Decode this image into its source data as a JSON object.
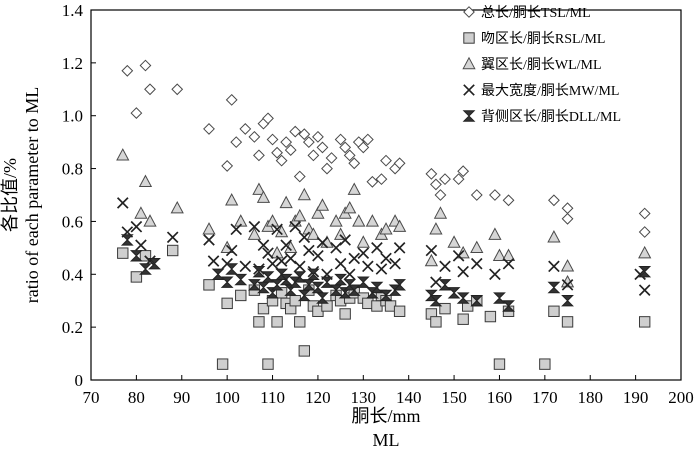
{
  "chart_data": {
    "type": "scatter",
    "title": "",
    "xlabel": "胴长/mm",
    "xlabel2": "ML",
    "ylabel": "各比值/%",
    "ylabel2": "ratio of each parameter to ML",
    "xlim": [
      70,
      200
    ],
    "ylim": [
      0,
      1.4
    ],
    "xticks": [
      "70",
      "80",
      "90",
      "100",
      "110",
      "120",
      "130",
      "140",
      "150",
      "160",
      "170",
      "180",
      "190",
      "200"
    ],
    "yticks": [
      "0",
      "0.2",
      "0.4",
      "0.6",
      "0.8",
      "1.0",
      "1.2",
      "1.4"
    ],
    "grid": false,
    "legend_position": "top-right",
    "series": [
      {
        "name": "总长/胴长TSL/ML",
        "marker": "diamond",
        "points": [
          [
            78,
            1.17
          ],
          [
            80,
            1.01
          ],
          [
            82,
            1.19
          ],
          [
            83,
            1.1
          ],
          [
            89,
            1.1
          ],
          [
            96,
            0.95
          ],
          [
            100,
            0.81
          ],
          [
            101,
            1.06
          ],
          [
            102,
            0.9
          ],
          [
            104,
            0.95
          ],
          [
            106,
            0.92
          ],
          [
            107,
            0.85
          ],
          [
            108,
            0.97
          ],
          [
            109,
            0.99
          ],
          [
            110,
            0.91
          ],
          [
            111,
            0.86
          ],
          [
            112,
            0.83
          ],
          [
            113,
            0.9
          ],
          [
            114,
            0.87
          ],
          [
            115,
            0.94
          ],
          [
            116,
            0.77
          ],
          [
            117,
            0.93
          ],
          [
            118,
            0.9
          ],
          [
            119,
            0.85
          ],
          [
            120,
            0.92
          ],
          [
            121,
            0.88
          ],
          [
            122,
            0.8
          ],
          [
            123,
            0.84
          ],
          [
            125,
            0.91
          ],
          [
            126,
            0.88
          ],
          [
            127,
            0.85
          ],
          [
            128,
            0.82
          ],
          [
            129,
            0.9
          ],
          [
            130,
            0.88
          ],
          [
            131,
            0.91
          ],
          [
            132,
            0.75
          ],
          [
            134,
            0.76
          ],
          [
            135,
            0.83
          ],
          [
            137,
            0.8
          ],
          [
            138,
            0.82
          ],
          [
            145,
            0.78
          ],
          [
            146,
            0.74
          ],
          [
            147,
            0.7
          ],
          [
            148,
            0.76
          ],
          [
            151,
            0.76
          ],
          [
            152,
            0.79
          ],
          [
            155,
            0.7
          ],
          [
            159,
            0.7
          ],
          [
            162,
            0.68
          ],
          [
            172,
            0.68
          ],
          [
            175,
            0.61
          ],
          [
            175,
            0.65
          ],
          [
            192,
            0.63
          ],
          [
            192,
            0.56
          ]
        ]
      },
      {
        "name": "吻区长/胴长RSL/ML",
        "marker": "square",
        "points": [
          [
            77,
            0.48
          ],
          [
            80,
            0.39
          ],
          [
            82,
            0.47
          ],
          [
            88,
            0.49
          ],
          [
            96,
            0.36
          ],
          [
            99,
            0.06
          ],
          [
            100,
            0.29
          ],
          [
            103,
            0.32
          ],
          [
            106,
            0.34
          ],
          [
            107,
            0.22
          ],
          [
            108,
            0.27
          ],
          [
            109,
            0.06
          ],
          [
            110,
            0.3
          ],
          [
            111,
            0.22
          ],
          [
            112,
            0.33
          ],
          [
            113,
            0.29
          ],
          [
            114,
            0.27
          ],
          [
            115,
            0.3
          ],
          [
            116,
            0.22
          ],
          [
            117,
            0.11
          ],
          [
            118,
            0.34
          ],
          [
            119,
            0.28
          ],
          [
            120,
            0.26
          ],
          [
            122,
            0.28
          ],
          [
            124,
            0.32
          ],
          [
            125,
            0.3
          ],
          [
            126,
            0.25
          ],
          [
            127,
            0.31
          ],
          [
            128,
            0.33
          ],
          [
            130,
            0.31
          ],
          [
            131,
            0.29
          ],
          [
            133,
            0.28
          ],
          [
            134,
            0.32
          ],
          [
            135,
            0.3
          ],
          [
            136,
            0.28
          ],
          [
            138,
            0.26
          ],
          [
            145,
            0.25
          ],
          [
            146,
            0.22
          ],
          [
            148,
            0.27
          ],
          [
            152,
            0.23
          ],
          [
            153,
            0.28
          ],
          [
            155,
            0.3
          ],
          [
            158,
            0.24
          ],
          [
            160,
            0.06
          ],
          [
            162,
            0.26
          ],
          [
            170,
            0.06
          ],
          [
            172,
            0.26
          ],
          [
            175,
            0.22
          ],
          [
            192,
            0.22
          ]
        ]
      },
      {
        "name": "翼区长/胴长WL/ML",
        "marker": "triangle",
        "points": [
          [
            77,
            0.85
          ],
          [
            81,
            0.63
          ],
          [
            82,
            0.75
          ],
          [
            83,
            0.6
          ],
          [
            89,
            0.65
          ],
          [
            96,
            0.57
          ],
          [
            100,
            0.5
          ],
          [
            101,
            0.68
          ],
          [
            103,
            0.6
          ],
          [
            106,
            0.55
          ],
          [
            107,
            0.72
          ],
          [
            108,
            0.69
          ],
          [
            109,
            0.58
          ],
          [
            110,
            0.6
          ],
          [
            111,
            0.48
          ],
          [
            112,
            0.56
          ],
          [
            113,
            0.67
          ],
          [
            114,
            0.5
          ],
          [
            115,
            0.6
          ],
          [
            116,
            0.62
          ],
          [
            117,
            0.7
          ],
          [
            118,
            0.57
          ],
          [
            119,
            0.55
          ],
          [
            120,
            0.63
          ],
          [
            121,
            0.66
          ],
          [
            122,
            0.52
          ],
          [
            124,
            0.6
          ],
          [
            125,
            0.55
          ],
          [
            126,
            0.63
          ],
          [
            127,
            0.65
          ],
          [
            128,
            0.72
          ],
          [
            129,
            0.6
          ],
          [
            130,
            0.52
          ],
          [
            132,
            0.6
          ],
          [
            134,
            0.55
          ],
          [
            135,
            0.57
          ],
          [
            137,
            0.6
          ],
          [
            138,
            0.58
          ],
          [
            145,
            0.45
          ],
          [
            146,
            0.57
          ],
          [
            147,
            0.63
          ],
          [
            150,
            0.52
          ],
          [
            152,
            0.48
          ],
          [
            155,
            0.5
          ],
          [
            159,
            0.55
          ],
          [
            160,
            0.47
          ],
          [
            162,
            0.47
          ],
          [
            172,
            0.54
          ],
          [
            175,
            0.43
          ],
          [
            175,
            0.37
          ],
          [
            192,
            0.48
          ]
        ]
      },
      {
        "name": "最大宽度/胴长MW/ML",
        "marker": "x",
        "points": [
          [
            77,
            0.67
          ],
          [
            78,
            0.56
          ],
          [
            80,
            0.58
          ],
          [
            81,
            0.51
          ],
          [
            83,
            0.45
          ],
          [
            88,
            0.54
          ],
          [
            96,
            0.53
          ],
          [
            97,
            0.45
          ],
          [
            100,
            0.44
          ],
          [
            101,
            0.49
          ],
          [
            102,
            0.57
          ],
          [
            104,
            0.43
          ],
          [
            106,
            0.58
          ],
          [
            107,
            0.42
          ],
          [
            108,
            0.51
          ],
          [
            109,
            0.48
          ],
          [
            110,
            0.44
          ],
          [
            111,
            0.57
          ],
          [
            112,
            0.45
          ],
          [
            113,
            0.51
          ],
          [
            114,
            0.46
          ],
          [
            115,
            0.58
          ],
          [
            116,
            0.43
          ],
          [
            117,
            0.54
          ],
          [
            118,
            0.49
          ],
          [
            119,
            0.41
          ],
          [
            120,
            0.47
          ],
          [
            121,
            0.52
          ],
          [
            122,
            0.4
          ],
          [
            124,
            0.5
          ],
          [
            125,
            0.44
          ],
          [
            126,
            0.53
          ],
          [
            127,
            0.4
          ],
          [
            128,
            0.46
          ],
          [
            130,
            0.48
          ],
          [
            131,
            0.43
          ],
          [
            133,
            0.5
          ],
          [
            134,
            0.42
          ],
          [
            135,
            0.46
          ],
          [
            137,
            0.44
          ],
          [
            138,
            0.5
          ],
          [
            145,
            0.49
          ],
          [
            146,
            0.37
          ],
          [
            148,
            0.43
          ],
          [
            151,
            0.47
          ],
          [
            152,
            0.41
          ],
          [
            155,
            0.44
          ],
          [
            159,
            0.4
          ],
          [
            162,
            0.44
          ],
          [
            172,
            0.43
          ],
          [
            175,
            0.36
          ],
          [
            191,
            0.4
          ],
          [
            192,
            0.34
          ]
        ]
      },
      {
        "name": "背侧区长/胴长DLL/ML",
        "marker": "hourglass",
        "points": [
          [
            78,
            0.53
          ],
          [
            80,
            0.47
          ],
          [
            82,
            0.42
          ],
          [
            84,
            0.44
          ],
          [
            98,
            0.4
          ],
          [
            100,
            0.37
          ],
          [
            101,
            0.42
          ],
          [
            103,
            0.38
          ],
          [
            106,
            0.36
          ],
          [
            107,
            0.41
          ],
          [
            108,
            0.35
          ],
          [
            109,
            0.39
          ],
          [
            110,
            0.33
          ],
          [
            111,
            0.36
          ],
          [
            112,
            0.4
          ],
          [
            113,
            0.38
          ],
          [
            114,
            0.34
          ],
          [
            115,
            0.37
          ],
          [
            116,
            0.39
          ],
          [
            117,
            0.32
          ],
          [
            118,
            0.36
          ],
          [
            119,
            0.4
          ],
          [
            120,
            0.35
          ],
          [
            121,
            0.31
          ],
          [
            122,
            0.37
          ],
          [
            124,
            0.34
          ],
          [
            125,
            0.38
          ],
          [
            126,
            0.33
          ],
          [
            127,
            0.36
          ],
          [
            128,
            0.34
          ],
          [
            130,
            0.37
          ],
          [
            132,
            0.33
          ],
          [
            133,
            0.35
          ],
          [
            135,
            0.32
          ],
          [
            137,
            0.34
          ],
          [
            138,
            0.36
          ],
          [
            145,
            0.32
          ],
          [
            146,
            0.3
          ],
          [
            148,
            0.36
          ],
          [
            150,
            0.33
          ],
          [
            152,
            0.31
          ],
          [
            155,
            0.3
          ],
          [
            160,
            0.31
          ],
          [
            162,
            0.28
          ],
          [
            172,
            0.35
          ],
          [
            175,
            0.3
          ],
          [
            192,
            0.41
          ]
        ]
      }
    ]
  }
}
